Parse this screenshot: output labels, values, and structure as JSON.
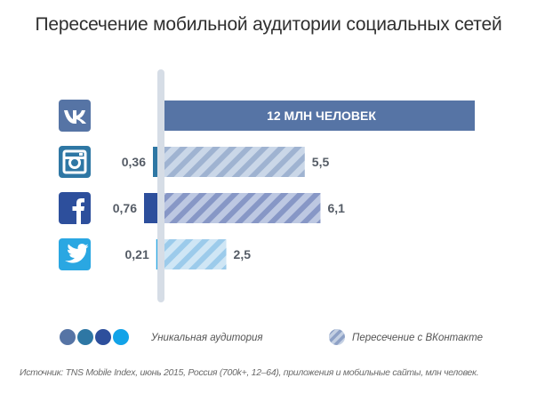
{
  "chart_data": {
    "type": "bar",
    "title": "Пересечение мобильной аудитории социальных сетей",
    "categories": [
      "ВКонтакте",
      "Instagram",
      "Facebook",
      "Twitter"
    ],
    "icons": [
      "vk-icon",
      "instagram-icon",
      "facebook-icon",
      "twitter-icon"
    ],
    "series": [
      {
        "name": "Уникальная аудитория",
        "values": [
          null,
          0.36,
          0.76,
          0.21
        ],
        "labels": [
          "",
          "0,36",
          "0,76",
          "0,21"
        ]
      },
      {
        "name": "Пересечение с ВКонтакте",
        "values": [
          12,
          5.5,
          6.1,
          2.5
        ],
        "labels": [
          "12 МЛН ЧЕЛОВЕК",
          "5,5",
          "6,1",
          "2,5"
        ]
      }
    ],
    "colors": {
      "vk": "#5674a5",
      "instagram": "#2e77a4",
      "facebook": "#2d4f9c",
      "twitter": "#2aa7e2",
      "instagram_hatch": "#aebfd8",
      "facebook_hatch": "#97a8d0",
      "twitter_hatch": "#a8d4ef",
      "axis": "#d6dde6",
      "legend_dots": [
        "#5674a5",
        "#2e77a4",
        "#2d4f9c",
        "#12a3e8"
      ]
    },
    "legend_placement": "bottom",
    "source": "Источник: TNS Mobile Index, июнь 2015, Россия (700k+, 12–64), приложения и мобильные сайты, млн человек."
  }
}
